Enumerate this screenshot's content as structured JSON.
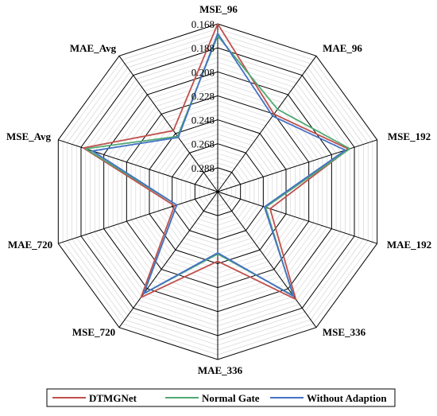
{
  "chart_data": {
    "type": "radar",
    "axes": [
      "MSE_96",
      "MAE_96",
      "MSE_192",
      "MAE_192",
      "MSE_336",
      "MAE_336",
      "MSE_720",
      "MAE_720",
      "MSE_Avg",
      "MAE_Avg"
    ],
    "tick_labels": [
      "0.168",
      "0.188",
      "0.208",
      "0.228",
      "0.248",
      "0.268",
      "0.288"
    ],
    "radial_range": [
      0.308,
      0.168
    ],
    "series": [
      {
        "name": "DTMGNet",
        "color": "#c0504d",
        "values": [
          0.168,
          0.228,
          0.193,
          0.262,
          0.197,
          0.25,
          0.199,
          0.27,
          0.19,
          0.245
        ]
      },
      {
        "name": "Normal Gate",
        "color": "#4fa972",
        "values": [
          0.178,
          0.223,
          0.192,
          0.266,
          0.201,
          0.256,
          0.203,
          0.272,
          0.192,
          0.251
        ]
      },
      {
        "name": "Without Adaption",
        "color": "#4472c4",
        "values": [
          0.176,
          0.23,
          0.196,
          0.267,
          0.2,
          0.257,
          0.203,
          0.272,
          0.198,
          0.252
        ]
      }
    ],
    "legend_position": "bottom",
    "grid": true
  }
}
